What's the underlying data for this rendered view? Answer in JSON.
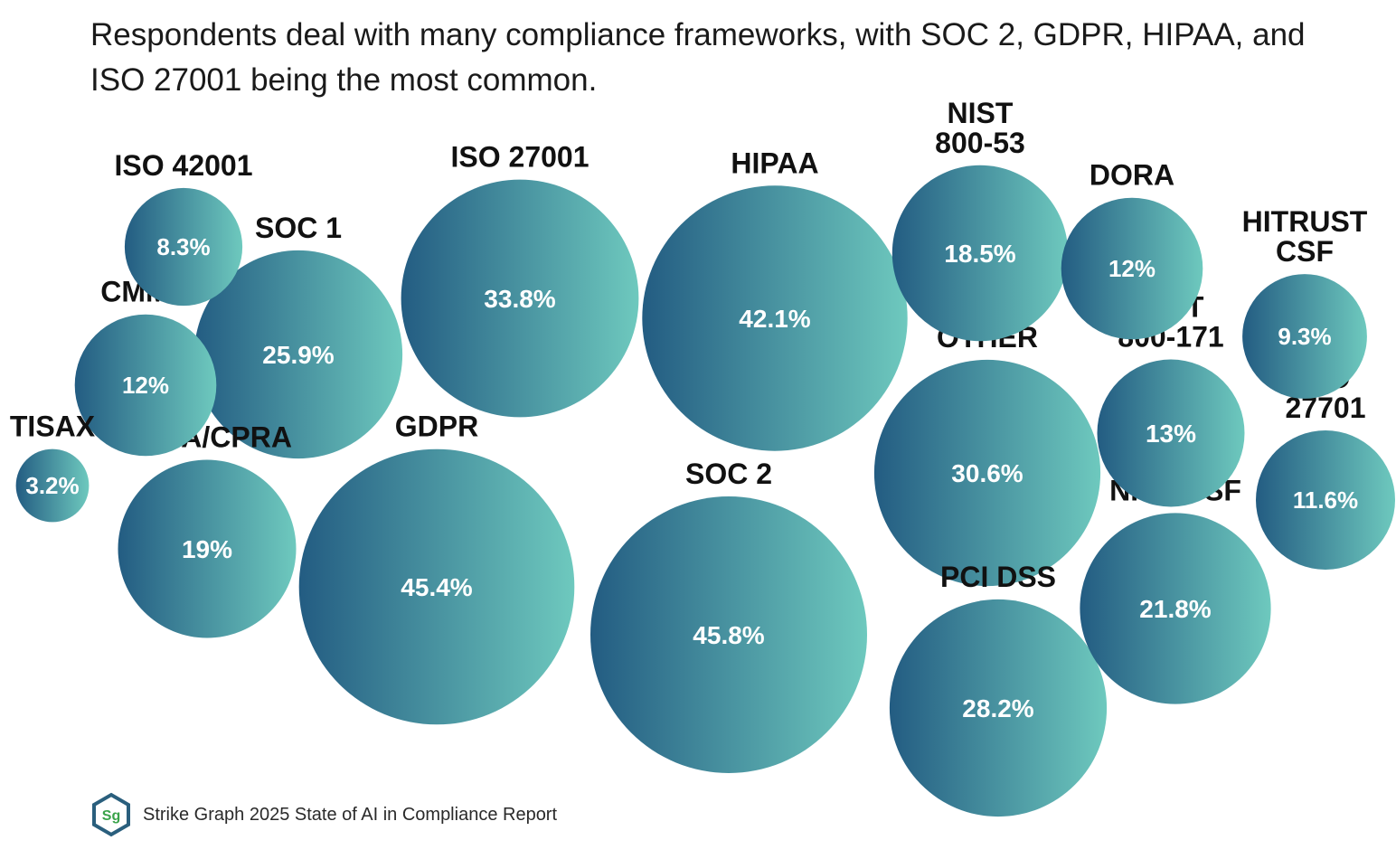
{
  "headline": "Respondents deal with many compliance frameworks, with SOC 2, GDPR, HIPAA, and ISO 27001 being the most common.",
  "footer": {
    "logo_text": "Sg",
    "source": "Strike Graph 2025 State of AI in Compliance Report"
  },
  "colors": {
    "bubble_dark": "#235c82",
    "bubble_light": "#6ec9be",
    "label": "#111111",
    "small_value": "#1e8c8c",
    "logo_border": "#2a5f7d",
    "logo_text": "#3aa34a"
  },
  "chart_data": {
    "type": "bubble",
    "title": "Respondents deal with many compliance frameworks, with SOC 2, GDPR, HIPAA, and ISO 27001 being the most common.",
    "unit": "%",
    "series": [
      {
        "name": "SOC 2",
        "label_lines": [
          "SOC 2"
        ],
        "value": 45.8,
        "display": "45.8%"
      },
      {
        "name": "GDPR",
        "label_lines": [
          "GDPR"
        ],
        "value": 45.4,
        "display": "45.4%"
      },
      {
        "name": "HIPAA",
        "label_lines": [
          "HIPAA"
        ],
        "value": 42.1,
        "display": "42.1%"
      },
      {
        "name": "ISO 27001",
        "label_lines": [
          "ISO 27001"
        ],
        "value": 33.8,
        "display": "33.8%"
      },
      {
        "name": "OTHER",
        "label_lines": [
          "OTHER"
        ],
        "value": 30.6,
        "display": "30.6%"
      },
      {
        "name": "PCI DSS",
        "label_lines": [
          "PCI DSS"
        ],
        "value": 28.2,
        "display": "28.2%"
      },
      {
        "name": "SOC 1",
        "label_lines": [
          "SOC 1"
        ],
        "value": 25.9,
        "display": "25.9%"
      },
      {
        "name": "NIST CSF",
        "label_lines": [
          "NIST CSF"
        ],
        "value": 21.8,
        "display": "21.8%"
      },
      {
        "name": "CCPA/CPRA",
        "label_lines": [
          "CCPA/CPRA"
        ],
        "value": 19,
        "display": "19%"
      },
      {
        "name": "NIST 800-53",
        "label_lines": [
          "NIST",
          "800-53"
        ],
        "value": 18.5,
        "display": "18.5%"
      },
      {
        "name": "NIST 800-171",
        "label_lines": [
          "NIST",
          "800-171"
        ],
        "value": 13,
        "display": "13%"
      },
      {
        "name": "DORA",
        "label_lines": [
          "DORA"
        ],
        "value": 12,
        "display": "12%"
      },
      {
        "name": "CMMC",
        "label_lines": [
          "CMMC"
        ],
        "value": 12,
        "display": "12%"
      },
      {
        "name": "ISO 27701",
        "label_lines": [
          "ISO",
          "27701"
        ],
        "value": 11.6,
        "display": "11.6%"
      },
      {
        "name": "HITRUST CSF",
        "label_lines": [
          "HITRUST",
          "CSF"
        ],
        "value": 9.3,
        "display": "9.3%"
      },
      {
        "name": "ISO 42001",
        "label_lines": [
          "ISO 42001"
        ],
        "value": 8.3,
        "display": "8.3%"
      },
      {
        "name": "TISAX",
        "label_lines": [
          "TISAX"
        ],
        "value": 3.2,
        "display": "3.2%"
      }
    ]
  }
}
